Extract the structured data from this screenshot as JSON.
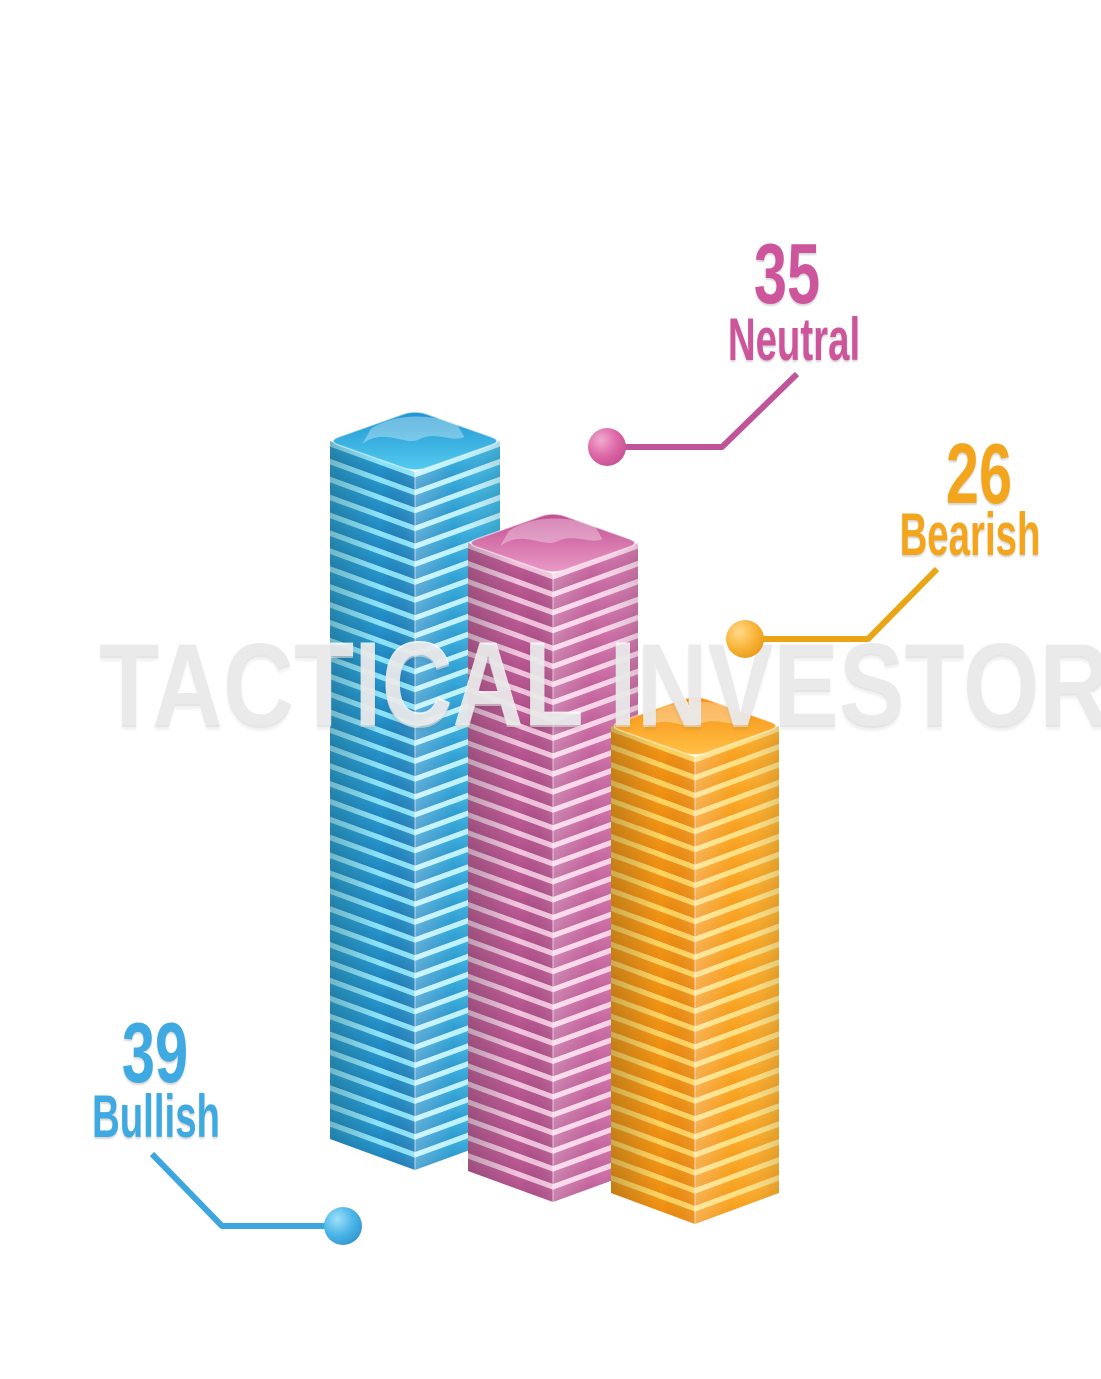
{
  "watermark": {
    "text": "TACTICAL INVESTOR",
    "color": "#ececec"
  },
  "chart_data": {
    "type": "bar",
    "variant": "3d-stacked-slab-columns",
    "categories": [
      "Bullish",
      "Neutral",
      "Bearish"
    ],
    "values": [
      39,
      35,
      26
    ],
    "axes": "none",
    "grid": false,
    "legend_position": "callout-labels",
    "background": "#ffffff",
    "annotations": [
      "TACTICAL INVESTOR"
    ],
    "series": [
      {
        "label": "Bullish",
        "value": 39,
        "text_color": "#3fa9e1",
        "line_color": "#3ea6de",
        "dot_colors": [
          "#9fe0f8",
          "#4ab5e8",
          "#2b8cc5"
        ],
        "palette": {
          "rim_left": "#8ce4fa",
          "body_left": [
            "#30abdc",
            "#1b79b6"
          ],
          "rim_right": "#bff2fd",
          "body_right": [
            "#46c1e9",
            "#2388c3"
          ],
          "cap": [
            "#1f93d0",
            "#55ccf0"
          ]
        }
      },
      {
        "label": "Neutral",
        "value": 35,
        "text_color": "#cd559b",
        "line_color": "#c0549a",
        "dot_colors": [
          "#f2aacf",
          "#dd67a6",
          "#ba4a8d"
        ],
        "palette": {
          "rim_left": "#f2c4de",
          "body_left": [
            "#ca68a2",
            "#aa4a84"
          ],
          "rim_right": "#f8d4e8",
          "body_right": [
            "#d87db3",
            "#b5538e"
          ],
          "cap": [
            "#c04b90",
            "#eb9cc8"
          ]
        }
      },
      {
        "label": "Bearish",
        "value": 26,
        "text_color": "#f2a51d",
        "line_color": "#e9a514",
        "dot_colors": [
          "#ffd98d",
          "#f9b53a",
          "#e3920f"
        ],
        "palette": {
          "rim_left": "#ffd45f",
          "body_left": [
            "#f8a21f",
            "#eb860b"
          ],
          "rim_right": "#ffe083",
          "body_right": [
            "#ffb634",
            "#f29112"
          ],
          "cap": [
            "#f68d10",
            "#ffc247"
          ]
        }
      }
    ]
  }
}
